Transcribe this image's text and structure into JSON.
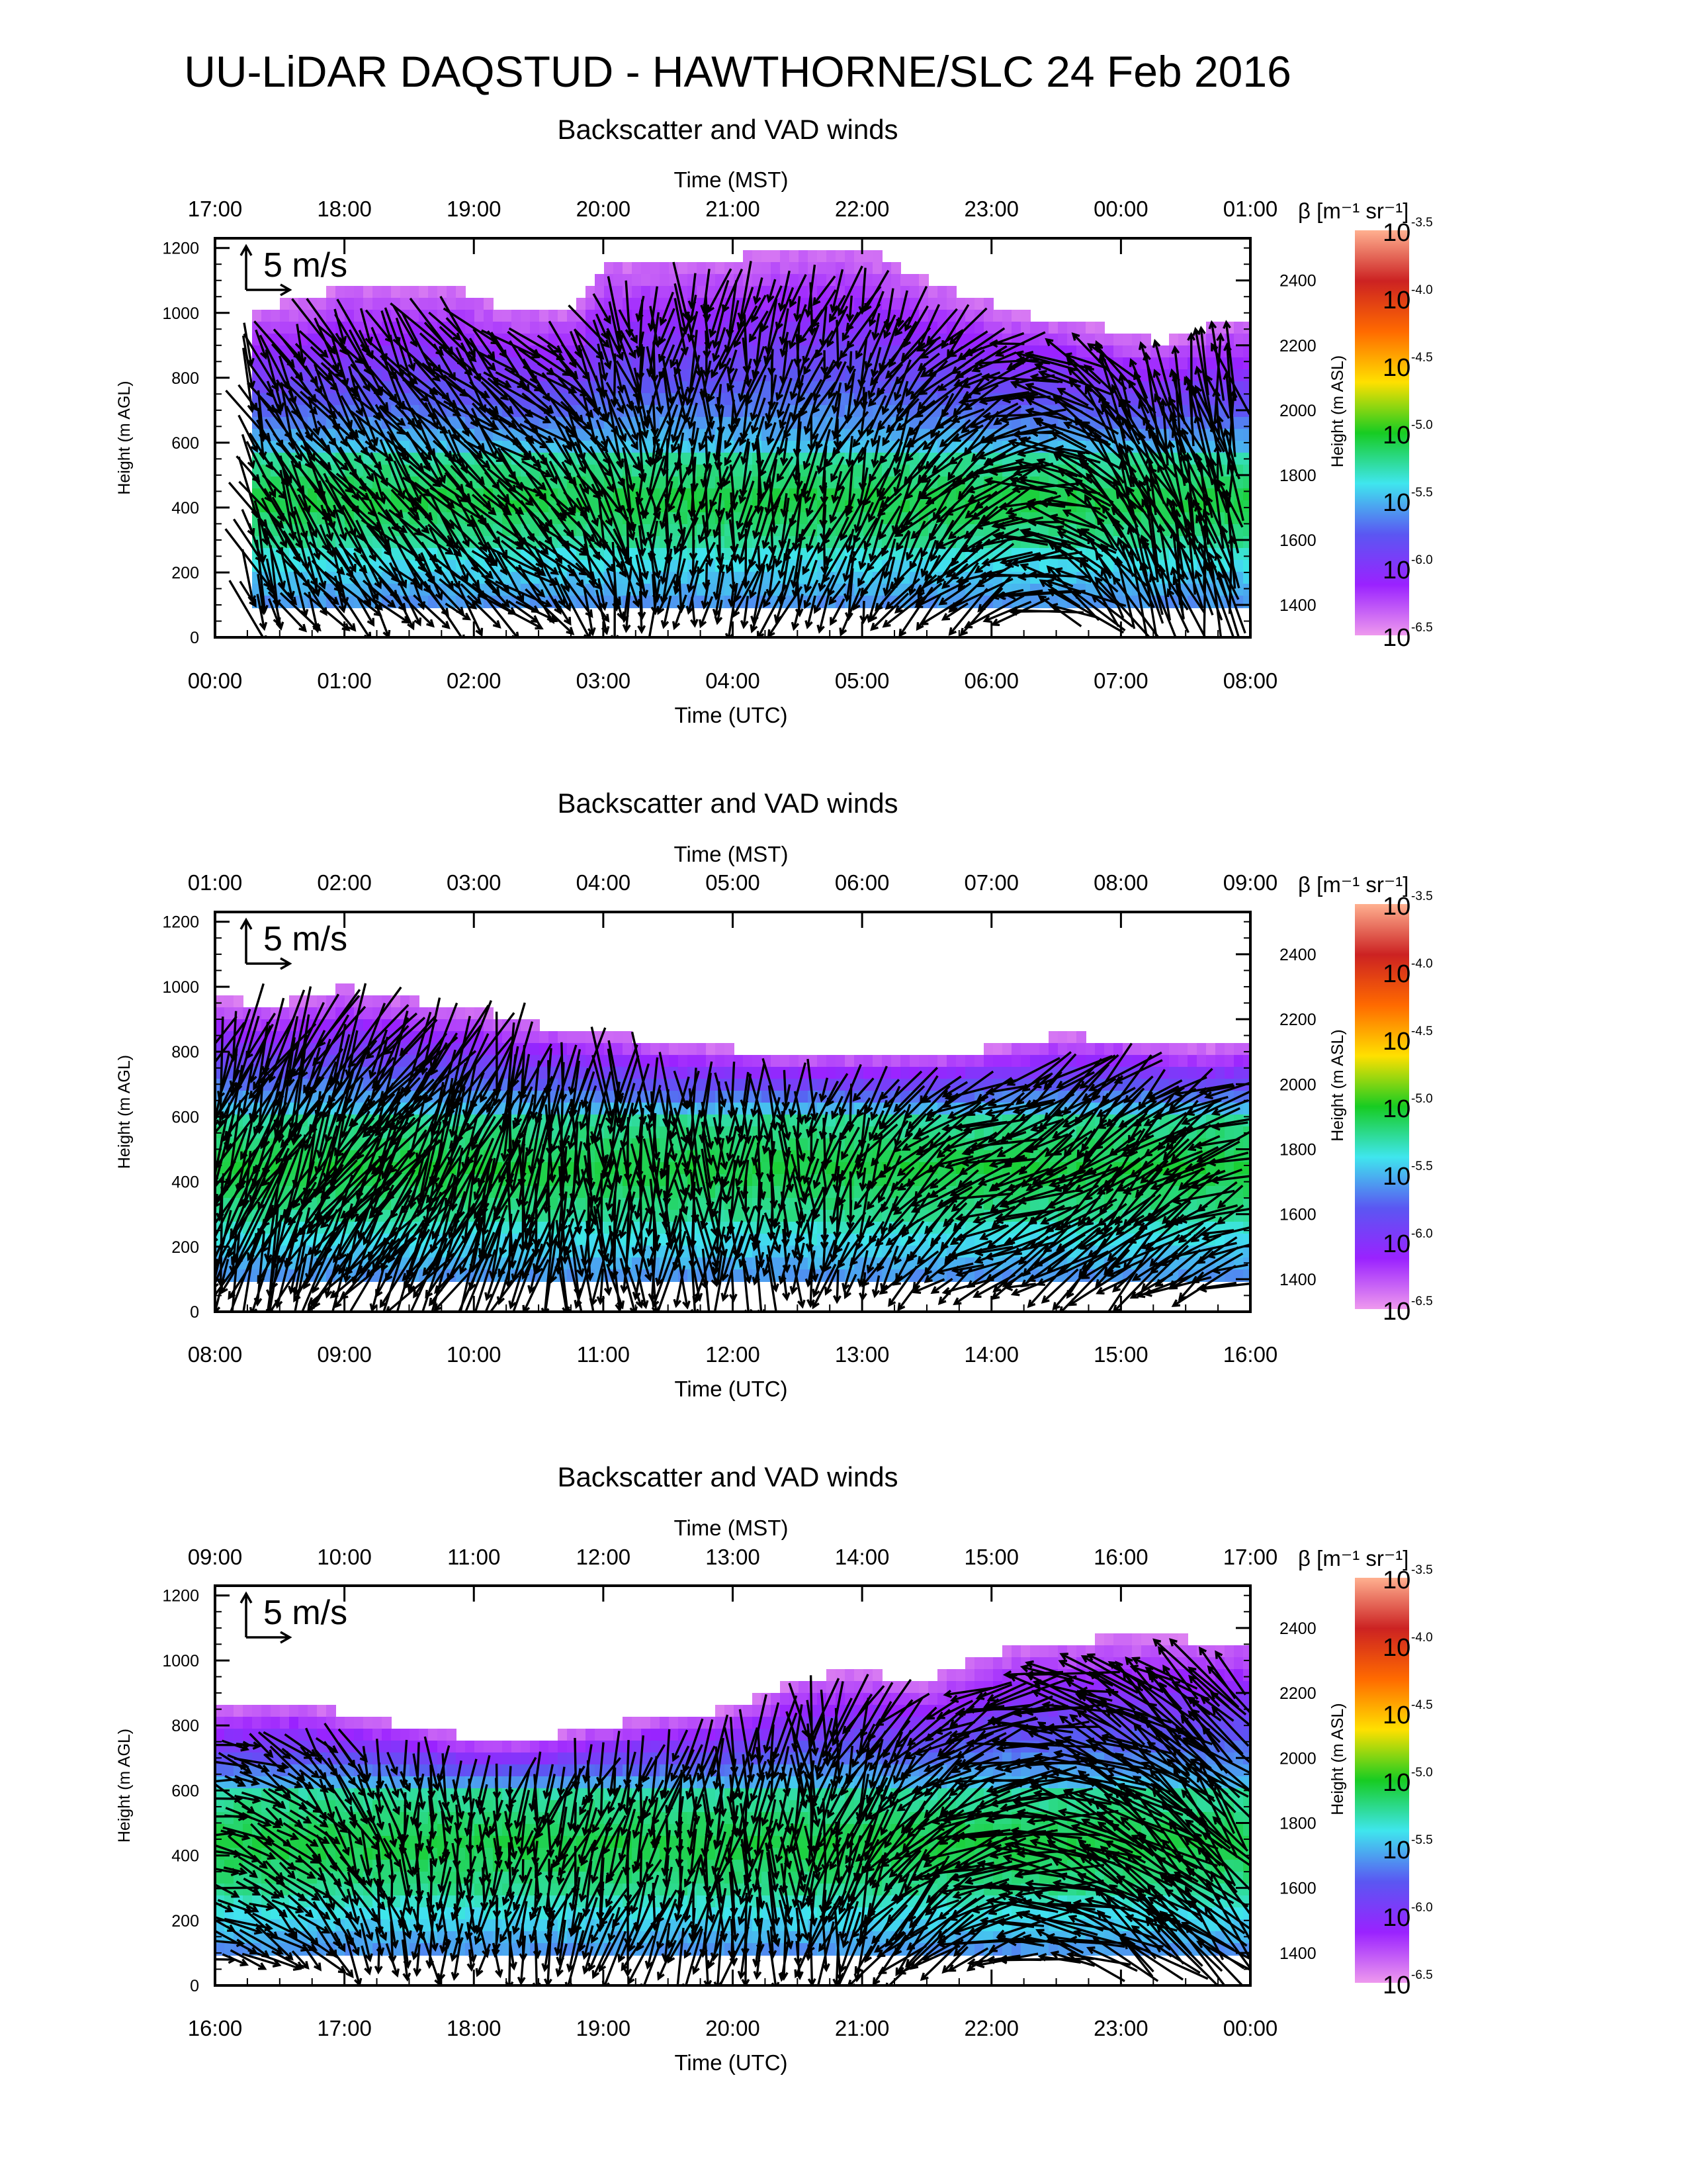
{
  "title": "UU-LiDAR DAQSTUD - HAWTHORNE/SLC 24 Feb 2016",
  "colors": {
    "background": "#ffffff",
    "arrow": "#000000",
    "colormap": [
      "#ee99ee",
      "#9a22ff",
      "#5a57f2",
      "#3fe6ee",
      "#17cc22",
      "#ffe000",
      "#ff6a00",
      "#cc2222",
      "#ffb090"
    ]
  },
  "icons": [
    "arrow-icon"
  ],
  "chart_data": [
    {
      "type": "heatmap",
      "title": "Backscatter and VAD winds",
      "top_axis_label": "Time (MST)",
      "bottom_axis_label": "Time (UTC)",
      "left_axis_label": "Height (m AGL)",
      "right_axis_label": "Height (m ASL)",
      "bottom_ticks": [
        "00:00",
        "01:00",
        "02:00",
        "03:00",
        "04:00",
        "05:00",
        "06:00",
        "07:00",
        "08:00"
      ],
      "top_ticks": [
        "17:00",
        "18:00",
        "19:00",
        "20:00",
        "21:00",
        "22:00",
        "23:00",
        "00:00",
        "01:00"
      ],
      "x_range_hours": [
        0,
        8
      ],
      "ylim": [
        0,
        1230
      ],
      "left_ticks": [
        0,
        200,
        400,
        600,
        800,
        1000,
        1200
      ],
      "right_ticks": [
        1400,
        1600,
        1800,
        2000,
        2200,
        2400
      ],
      "right_axis_offset_m": 1300,
      "reference_vector_label": "5 m/s",
      "colorbar_label": "β [m⁻¹ sr⁻¹]",
      "colorbar_ticks": [
        "10",
        "10",
        "10",
        "10",
        "10",
        "10",
        "10"
      ],
      "colorbar_exponents": [
        "-3.5",
        "-4.0",
        "-4.5",
        "-5.0",
        "-5.5",
        "-6.0",
        "-6.5"
      ],
      "layer_top_m": [
        [
          0.27,
          1010
        ],
        [
          0.5,
          1030
        ],
        [
          1.0,
          1080
        ],
        [
          1.8,
          1080
        ],
        [
          2.3,
          1010
        ],
        [
          2.8,
          1010
        ],
        [
          3.0,
          1150
        ],
        [
          4.0,
          1170
        ],
        [
          4.3,
          1200
        ],
        [
          5.0,
          1200
        ],
        [
          5.4,
          1120
        ],
        [
          5.7,
          1070
        ],
        [
          6.2,
          1000
        ],
        [
          6.8,
          960
        ],
        [
          7.3,
          910
        ],
        [
          7.8,
          970
        ],
        [
          8.0,
          960
        ]
      ],
      "green_layer": {
        "center_m": 420,
        "halfwidth_m": 140
      },
      "wind_direction_deg": [
        [
          0,
          160
        ],
        [
          2.5,
          130
        ],
        [
          3.5,
          185
        ],
        [
          5.0,
          200
        ],
        [
          6.0,
          240
        ],
        [
          7.0,
          330
        ],
        [
          8.0,
          350
        ]
      ],
      "wind_speed_ms": [
        [
          0,
          4
        ],
        [
          2.5,
          4
        ],
        [
          5.0,
          3
        ],
        [
          7.0,
          5
        ],
        [
          8.0,
          6
        ]
      ]
    },
    {
      "type": "heatmap",
      "title": "Backscatter and VAD winds",
      "top_axis_label": "Time (MST)",
      "bottom_axis_label": "Time (UTC)",
      "left_axis_label": "Height (m AGL)",
      "right_axis_label": "Height (m ASL)",
      "bottom_ticks": [
        "08:00",
        "09:00",
        "10:00",
        "11:00",
        "12:00",
        "13:00",
        "14:00",
        "15:00",
        "16:00"
      ],
      "top_ticks": [
        "01:00",
        "02:00",
        "03:00",
        "04:00",
        "05:00",
        "06:00",
        "07:00",
        "08:00",
        "09:00"
      ],
      "x_range_hours": [
        0,
        8
      ],
      "ylim": [
        0,
        1230
      ],
      "left_ticks": [
        0,
        200,
        400,
        600,
        800,
        1000,
        1200
      ],
      "right_ticks": [
        1400,
        1600,
        1800,
        2000,
        2200,
        2400
      ],
      "right_axis_offset_m": 1300,
      "reference_vector_label": "5 m/s",
      "colorbar_label": "β [m⁻¹ sr⁻¹]",
      "colorbar_ticks": [
        "10",
        "10",
        "10",
        "10",
        "10",
        "10",
        "10"
      ],
      "colorbar_exponents": [
        "-3.5",
        "-4.0",
        "-4.5",
        "-5.0",
        "-5.5",
        "-6.0",
        "-6.5"
      ],
      "layer_top_m": [
        [
          0.0,
          960
        ],
        [
          0.5,
          950
        ],
        [
          1.0,
          1000
        ],
        [
          1.5,
          960
        ],
        [
          2.0,
          930
        ],
        [
          2.5,
          880
        ],
        [
          3.0,
          860
        ],
        [
          3.5,
          820
        ],
        [
          4.0,
          810
        ],
        [
          4.5,
          790
        ],
        [
          5.0,
          790
        ],
        [
          5.5,
          790
        ],
        [
          6.0,
          810
        ],
        [
          6.5,
          850
        ],
        [
          7.0,
          840
        ],
        [
          7.5,
          810
        ],
        [
          8.0,
          820
        ]
      ],
      "green_layer": {
        "center_m": 440,
        "halfwidth_m": 170
      },
      "wind_direction_deg": [
        [
          0,
          200
        ],
        [
          1.5,
          215
        ],
        [
          3.0,
          180
        ],
        [
          4.5,
          180
        ],
        [
          6.0,
          250
        ],
        [
          7.0,
          225
        ],
        [
          8.0,
          250
        ]
      ],
      "wind_speed_ms": [
        [
          0,
          6
        ],
        [
          1.5,
          7
        ],
        [
          3.0,
          5
        ],
        [
          5.0,
          3
        ],
        [
          7.0,
          5
        ],
        [
          8.0,
          4
        ]
      ]
    },
    {
      "type": "heatmap",
      "title": "Backscatter and VAD winds",
      "top_axis_label": "Time (MST)",
      "bottom_axis_label": "Time (UTC)",
      "left_axis_label": "Height (m AGL)",
      "right_axis_label": "Height (m ASL)",
      "bottom_ticks": [
        "16:00",
        "17:00",
        "18:00",
        "19:00",
        "20:00",
        "21:00",
        "22:00",
        "23:00",
        "00:00"
      ],
      "top_ticks": [
        "09:00",
        "10:00",
        "11:00",
        "12:00",
        "13:00",
        "14:00",
        "15:00",
        "16:00",
        "17:00"
      ],
      "x_range_hours": [
        0,
        8
      ],
      "ylim": [
        0,
        1230
      ],
      "left_ticks": [
        0,
        200,
        400,
        600,
        800,
        1000,
        1200
      ],
      "right_ticks": [
        1400,
        1600,
        1800,
        2000,
        2200,
        2400
      ],
      "right_axis_offset_m": 1300,
      "reference_vector_label": "5 m/s",
      "colorbar_label": "β [m⁻¹ sr⁻¹]",
      "colorbar_ticks": [
        "10",
        "10",
        "10",
        "10",
        "10",
        "10",
        "10"
      ],
      "colorbar_exponents": [
        "-3.5",
        "-4.0",
        "-4.5",
        "-5.0",
        "-5.5",
        "-6.0",
        "-6.5"
      ],
      "layer_top_m": [
        [
          0.0,
          850
        ],
        [
          0.6,
          870
        ],
        [
          1.0,
          840
        ],
        [
          1.5,
          800
        ],
        [
          2.0,
          760
        ],
        [
          2.5,
          760
        ],
        [
          3.0,
          800
        ],
        [
          3.5,
          830
        ],
        [
          4.0,
          850
        ],
        [
          4.5,
          940
        ],
        [
          5.0,
          970
        ],
        [
          5.5,
          930
        ],
        [
          5.8,
          1000
        ],
        [
          6.3,
          1050
        ],
        [
          7.0,
          1070
        ],
        [
          8.0,
          1060
        ]
      ],
      "green_layer": {
        "center_m": 430,
        "halfwidth_m": 170
      },
      "wind_direction_deg": [
        [
          0,
          100
        ],
        [
          1.5,
          175
        ],
        [
          3.0,
          200
        ],
        [
          4.5,
          180
        ],
        [
          5.5,
          230
        ],
        [
          7.0,
          300
        ],
        [
          8.0,
          320
        ]
      ],
      "wind_speed_ms": [
        [
          0,
          3
        ],
        [
          2.0,
          3
        ],
        [
          4.0,
          4
        ],
        [
          6.0,
          5
        ],
        [
          8.0,
          6
        ]
      ]
    }
  ]
}
